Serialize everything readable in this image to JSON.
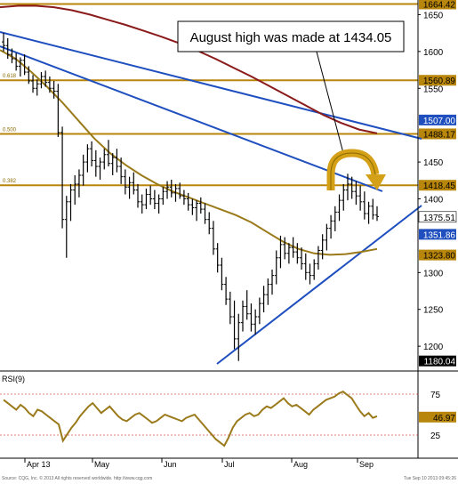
{
  "chart_data": {
    "type": "ohlc",
    "title": "",
    "annotation": "August high was made at 1434.05",
    "x_tick_labels": [
      "Apr 13",
      "May",
      "Jun",
      "Jul",
      "Aug",
      "Sep"
    ],
    "price_ticks": [
      "1650",
      "1600",
      "1550",
      "1450",
      "1400",
      "1300",
      "1250",
      "1200"
    ],
    "price_range": [
      1170,
      1665
    ],
    "fib_levels": [
      {
        "pct": "",
        "price": 1664.42,
        "label": "1664.42"
      },
      {
        "pct": "0.618",
        "price": 1560.89,
        "label": "1560.89"
      },
      {
        "pct": "0.500",
        "price": 1488.17,
        "label": "1488.17"
      },
      {
        "pct": "0.382",
        "price": 1418.45,
        "label": "1418.45"
      }
    ],
    "price_badges": [
      {
        "label": "1507.00",
        "price": 1507.0,
        "color": "#1f4fbf"
      },
      {
        "label": "1375.51",
        "price": 1375.51,
        "color": "#ffffff"
      },
      {
        "label": "1351.86",
        "price": 1351.86,
        "color": "#1f4fbf"
      },
      {
        "label": "1323.80",
        "price": 1323.8,
        "color": "#b8860b"
      },
      {
        "label": "1180.04",
        "price": 1180.04,
        "color": "#000000"
      }
    ],
    "ohlc": [
      [
        1613,
        1625,
        1600,
        1608
      ],
      [
        1608,
        1618,
        1590,
        1596
      ],
      [
        1596,
        1604,
        1584,
        1590
      ],
      [
        1590,
        1598,
        1574,
        1580
      ],
      [
        1580,
        1592,
        1566,
        1588
      ],
      [
        1588,
        1596,
        1568,
        1572
      ],
      [
        1572,
        1580,
        1556,
        1560
      ],
      [
        1560,
        1568,
        1544,
        1550
      ],
      [
        1550,
        1562,
        1540,
        1556
      ],
      [
        1556,
        1572,
        1550,
        1566
      ],
      [
        1566,
        1574,
        1552,
        1558
      ],
      [
        1558,
        1566,
        1544,
        1550
      ],
      [
        1550,
        1560,
        1536,
        1546
      ],
      [
        1546,
        1556,
        1484,
        1490
      ],
      [
        1490,
        1498,
        1360,
        1372
      ],
      [
        1372,
        1404,
        1320,
        1396
      ],
      [
        1396,
        1420,
        1370,
        1412
      ],
      [
        1412,
        1432,
        1392,
        1420
      ],
      [
        1420,
        1440,
        1402,
        1432
      ],
      [
        1432,
        1460,
        1418,
        1450
      ],
      [
        1450,
        1474,
        1436,
        1468
      ],
      [
        1468,
        1478,
        1444,
        1452
      ],
      [
        1452,
        1466,
        1430,
        1444
      ],
      [
        1444,
        1456,
        1426,
        1450
      ],
      [
        1450,
        1468,
        1440,
        1460
      ],
      [
        1460,
        1480,
        1444,
        1448
      ],
      [
        1448,
        1462,
        1432,
        1456
      ],
      [
        1456,
        1468,
        1436,
        1444
      ],
      [
        1444,
        1456,
        1420,
        1430
      ],
      [
        1430,
        1440,
        1406,
        1416
      ],
      [
        1416,
        1430,
        1400,
        1422
      ],
      [
        1422,
        1436,
        1406,
        1412
      ],
      [
        1412,
        1420,
        1388,
        1396
      ],
      [
        1396,
        1406,
        1380,
        1392
      ],
      [
        1392,
        1414,
        1386,
        1406
      ],
      [
        1406,
        1418,
        1392,
        1400
      ],
      [
        1400,
        1412,
        1386,
        1394
      ],
      [
        1394,
        1406,
        1380,
        1400
      ],
      [
        1400,
        1416,
        1392,
        1410
      ],
      [
        1410,
        1424,
        1400,
        1416
      ],
      [
        1416,
        1426,
        1402,
        1408
      ],
      [
        1408,
        1420,
        1396,
        1414
      ],
      [
        1414,
        1422,
        1400,
        1404
      ],
      [
        1404,
        1412,
        1392,
        1400
      ],
      [
        1400,
        1408,
        1384,
        1392
      ],
      [
        1392,
        1400,
        1378,
        1388
      ],
      [
        1388,
        1398,
        1370,
        1394
      ],
      [
        1394,
        1402,
        1380,
        1386
      ],
      [
        1386,
        1394,
        1366,
        1372
      ],
      [
        1372,
        1382,
        1352,
        1360
      ],
      [
        1360,
        1370,
        1324,
        1332
      ],
      [
        1332,
        1340,
        1300,
        1310
      ],
      [
        1310,
        1320,
        1276,
        1284
      ],
      [
        1284,
        1294,
        1256,
        1264
      ],
      [
        1264,
        1274,
        1230,
        1240
      ],
      [
        1240,
        1262,
        1196,
        1210
      ],
      [
        1210,
        1244,
        1180,
        1232
      ],
      [
        1232,
        1262,
        1220,
        1254
      ],
      [
        1254,
        1276,
        1236,
        1244
      ],
      [
        1244,
        1258,
        1220,
        1230
      ],
      [
        1230,
        1250,
        1216,
        1240
      ],
      [
        1240,
        1266,
        1230,
        1258
      ],
      [
        1258,
        1282,
        1246,
        1270
      ],
      [
        1270,
        1292,
        1256,
        1284
      ],
      [
        1284,
        1304,
        1270,
        1296
      ],
      [
        1296,
        1330,
        1284,
        1320
      ],
      [
        1320,
        1350,
        1306,
        1338
      ],
      [
        1338,
        1348,
        1318,
        1326
      ],
      [
        1326,
        1340,
        1312,
        1334
      ],
      [
        1334,
        1348,
        1320,
        1328
      ],
      [
        1328,
        1340,
        1312,
        1320
      ],
      [
        1320,
        1334,
        1304,
        1312
      ],
      [
        1312,
        1326,
        1290,
        1300
      ],
      [
        1300,
        1312,
        1284,
        1296
      ],
      [
        1296,
        1318,
        1290,
        1312
      ],
      [
        1312,
        1336,
        1304,
        1330
      ],
      [
        1330,
        1352,
        1318,
        1344
      ],
      [
        1344,
        1366,
        1330,
        1360
      ],
      [
        1360,
        1378,
        1346,
        1370
      ],
      [
        1370,
        1390,
        1356,
        1382
      ],
      [
        1382,
        1406,
        1370,
        1398
      ],
      [
        1398,
        1420,
        1384,
        1412
      ],
      [
        1412,
        1434.05,
        1398,
        1420
      ],
      [
        1420,
        1430,
        1400,
        1410
      ],
      [
        1410,
        1424,
        1392,
        1404
      ],
      [
        1404,
        1418,
        1384,
        1396
      ],
      [
        1396,
        1410,
        1372,
        1380
      ],
      [
        1380,
        1396,
        1366,
        1390
      ],
      [
        1390,
        1400,
        1372,
        1378
      ],
      [
        1378,
        1390,
        1370,
        1376
      ]
    ],
    "ma_gold": [
      1602,
      1590,
      1572,
      1552,
      1530,
      1506,
      1482,
      1462,
      1446,
      1432,
      1420,
      1410,
      1402,
      1394,
      1386,
      1378,
      1368,
      1355,
      1342,
      1332,
      1326,
      1324,
      1325,
      1328,
      1332
    ],
    "ma_red": [
      1660,
      1662,
      1662,
      1660,
      1656,
      1650,
      1643,
      1636,
      1628,
      1620,
      1611,
      1601,
      1590,
      1578,
      1566,
      1553,
      1540,
      1527,
      1514,
      1503,
      1494,
      1489
    ],
    "rsi": {
      "label": "RSI(9)",
      "ticks": [
        "75",
        "25"
      ],
      "current": "46.97",
      "range": [
        0,
        100
      ],
      "values": [
        68,
        64,
        60,
        56,
        62,
        58,
        52,
        48,
        56,
        54,
        50,
        46,
        42,
        38,
        18,
        26,
        34,
        40,
        48,
        54,
        60,
        64,
        58,
        52,
        56,
        60,
        54,
        48,
        44,
        42,
        46,
        50,
        52,
        48,
        44,
        40,
        42,
        46,
        50,
        48,
        46,
        44,
        42,
        46,
        48,
        50,
        44,
        38,
        32,
        26,
        20,
        16,
        12,
        22,
        34,
        42,
        46,
        50,
        52,
        48,
        50,
        56,
        60,
        58,
        62,
        66,
        70,
        64,
        60,
        62,
        58,
        54,
        50,
        56,
        60,
        64,
        68,
        70,
        72,
        76,
        78,
        74,
        70,
        62,
        54,
        48,
        52,
        46,
        48
      ]
    }
  },
  "footer": {
    "source": "Source: CQG, Inc. © 2013 All rights reserved worldwide. http://www.cqg.com",
    "timestamp": "Tue Sep 10 2013 09:45:26"
  }
}
